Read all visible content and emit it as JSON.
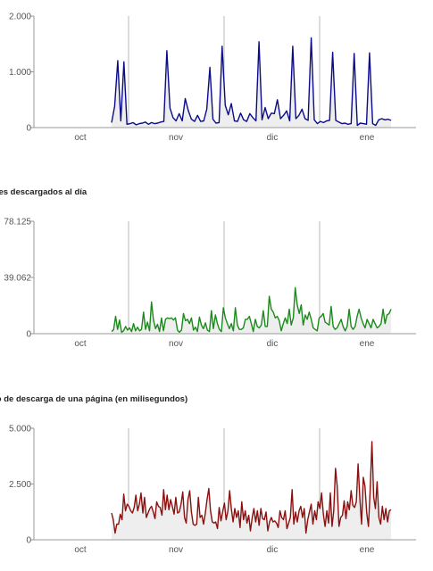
{
  "chart_data": [
    {
      "type": "area",
      "title": "",
      "color": "#0b0b8a",
      "ylim": [
        0,
        2000
      ],
      "yticks": [
        "2.000",
        "1.000",
        "0"
      ],
      "xticks": [
        "oct",
        "nov",
        "dic",
        "ene"
      ],
      "series": [
        {
          "values": [
            90,
            380,
            1200,
            120,
            1180,
            60,
            70,
            90,
            50,
            70,
            80,
            100,
            60,
            90,
            70,
            80,
            100,
            110,
            1380,
            350,
            180,
            120,
            250,
            120,
            520,
            300,
            150,
            110,
            220,
            110,
            120,
            330,
            1080,
            150,
            80,
            90,
            1460,
            400,
            230,
            430,
            120,
            110,
            260,
            140,
            110,
            250,
            180,
            120,
            1540,
            140,
            360,
            160,
            260,
            250,
            500,
            160,
            220,
            300,
            120,
            1460,
            160,
            220,
            330,
            160,
            130,
            1610,
            140,
            70,
            110,
            90,
            120,
            130,
            1350,
            130,
            100,
            70,
            80,
            60,
            70,
            1330,
            40,
            80,
            70,
            60,
            1340,
            70,
            40,
            140,
            160,
            140,
            150,
            130
          ]
        }
      ]
    },
    {
      "type": "area",
      "title": "ytes descargados al día",
      "color": "#1a8a1a",
      "ylim": [
        0,
        156250
      ],
      "yticks": [
        "78.125",
        "39.062",
        "0"
      ],
      "xticks": [
        "oct",
        "nov",
        "dic",
        "ene"
      ],
      "series": [
        {
          "values": [
            3000,
            5500,
            24000,
            6000,
            19000,
            2000,
            4000,
            10000,
            5000,
            8000,
            3000,
            14000,
            4000,
            9000,
            4000,
            6000,
            30000,
            6000,
            16000,
            4000,
            44000,
            19000,
            7000,
            13000,
            3000,
            22000,
            4000,
            20000,
            22000,
            21000,
            22000,
            19000,
            22000,
            5000,
            2000,
            5000,
            28000,
            18000,
            20000,
            14000,
            22000,
            5000,
            9000,
            3000,
            23000,
            12000,
            7000,
            15000,
            5000,
            3000,
            32000,
            7000,
            26000,
            14000,
            6000,
            3000,
            36000,
            22000,
            14000,
            7000,
            14000,
            4000,
            36000,
            12000,
            6000,
            6000,
            8000,
            20000,
            20000,
            24000,
            14000,
            3000,
            20000,
            10000,
            8000,
            12000,
            32000,
            10000,
            10000,
            52000,
            34000,
            30000,
            22000,
            24000,
            18000,
            4000,
            14000,
            22000,
            14000,
            34000,
            12000,
            22000,
            64000,
            40000,
            28000,
            40000,
            12000,
            26000,
            20000,
            30000,
            20000,
            8000,
            6000,
            4000,
            22000,
            24000,
            28000,
            16000,
            14000,
            12000,
            38000,
            10000,
            6000,
            8000,
            14000,
            20000,
            10000,
            4000,
            10000,
            34000,
            10000,
            6000,
            10000,
            24000,
            34000,
            22000,
            14000,
            8000,
            20000,
            14000,
            8000,
            20000,
            14000,
            8000,
            10000,
            14000,
            34000,
            14000,
            26000,
            28000,
            34000
          ]
        }
      ]
    },
    {
      "type": "area",
      "title": "po de descarga de una página (en milisegundos)",
      "color": "#8b1010",
      "ylim": [
        0,
        5000
      ],
      "yticks": [
        "5.000",
        "2.500",
        "0"
      ],
      "xticks": [
        "oct",
        "nov",
        "dic",
        "ene"
      ],
      "series": [
        {
          "values": [
            1200,
            900,
            300,
            700,
            700,
            1150,
            900,
            2050,
            1300,
            1600,
            1500,
            1300,
            1200,
            1450,
            2000,
            1300,
            1600,
            2100,
            1200,
            1900,
            1000,
            1200,
            1400,
            1500,
            1250,
            950,
            1700,
            1500,
            1450,
            1100,
            2250,
            1350,
            2000,
            1350,
            1800,
            1500,
            1150,
            1900,
            1200,
            1250,
            1600,
            2150,
            1000,
            750,
            1800,
            2200,
            1250,
            700,
            650,
            700,
            1900,
            1000,
            1100,
            700,
            1200,
            1800,
            2300,
            1300,
            800,
            750,
            800,
            500,
            1450,
            850,
            1250,
            1650,
            900,
            1300,
            2200,
            1400,
            800,
            1400,
            1000,
            1300,
            550,
            1700,
            900,
            1300,
            750,
            1100,
            400,
            1000,
            1400,
            800,
            1300,
            650,
            1400,
            950,
            900,
            1250,
            400,
            800,
            1000,
            800,
            850,
            750,
            550,
            1300,
            1000,
            900,
            1300,
            500,
            750,
            1000,
            2250,
            700,
            1250,
            800,
            1300,
            1500,
            1000,
            1400,
            300,
            900,
            1250,
            1600,
            700,
            1300,
            900,
            1700,
            1400,
            2100,
            1150,
            600,
            1300,
            750,
            2100,
            600,
            1300,
            3200,
            2400,
            600,
            1000,
            1100,
            1750,
            950,
            1700,
            1350,
            2200,
            1550,
            1450,
            1700,
            3400,
            1900,
            700,
            2800,
            2400,
            1200,
            600,
            2300,
            4400,
            1900,
            1400,
            2600,
            1000,
            700,
            1500,
            900,
            1400,
            800,
            1300,
            1350
          ]
        }
      ]
    }
  ]
}
